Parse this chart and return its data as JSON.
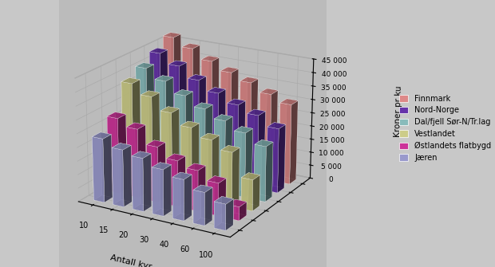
{
  "regions": [
    "Jæren",
    "Østlandets flatbygd",
    "Vestlandet",
    "Dal/fjell Sør-N/Tr.lag",
    "Nord-Norge",
    "Finnmark"
  ],
  "herd_sizes": [
    10,
    15,
    20,
    30,
    40,
    60,
    100
  ],
  "zlabel": "Kroner pr ku",
  "xlabel": "Antall kyr",
  "zticks": [
    0,
    5000,
    10000,
    15000,
    20000,
    25000,
    30000,
    35000,
    40000,
    45000
  ],
  "zlim": [
    0,
    45000
  ],
  "values": {
    "Jæren": [
      23500,
      21000,
      19500,
      17000,
      15000,
      12000,
      9500
    ],
    "Østlandets flatbygd": [
      28000,
      25500,
      20500,
      17000,
      15000,
      12000,
      5000
    ],
    "Vestlandet": [
      38000,
      34500,
      30000,
      26000,
      23000,
      20000,
      11500
    ],
    "Dal/fjell Sør-N/Tr.lag": [
      41000,
      37500,
      33500,
      30000,
      27000,
      24000,
      20500
    ],
    "Nord-Norge": [
      44000,
      40500,
      36500,
      33000,
      30000,
      27500,
      24000
    ],
    "Finnmark": [
      47500,
      44500,
      41000,
      38000,
      35500,
      32500,
      30000
    ]
  },
  "colors": {
    "Jæren": "#9999CC",
    "Østlandets flatbygd": "#CC3399",
    "Vestlandet": "#CCCC88",
    "Dal/fjell Sør-N/Tr.lag": "#88BBBB",
    "Nord-Norge": "#6633AA",
    "Finnmark": "#DD8888"
  },
  "background_color": "#C8C8C8",
  "wall_color": "#BBBBBB",
  "figsize": [
    6.2,
    3.35
  ],
  "dpi": 100,
  "elev": 20,
  "azim": -60
}
